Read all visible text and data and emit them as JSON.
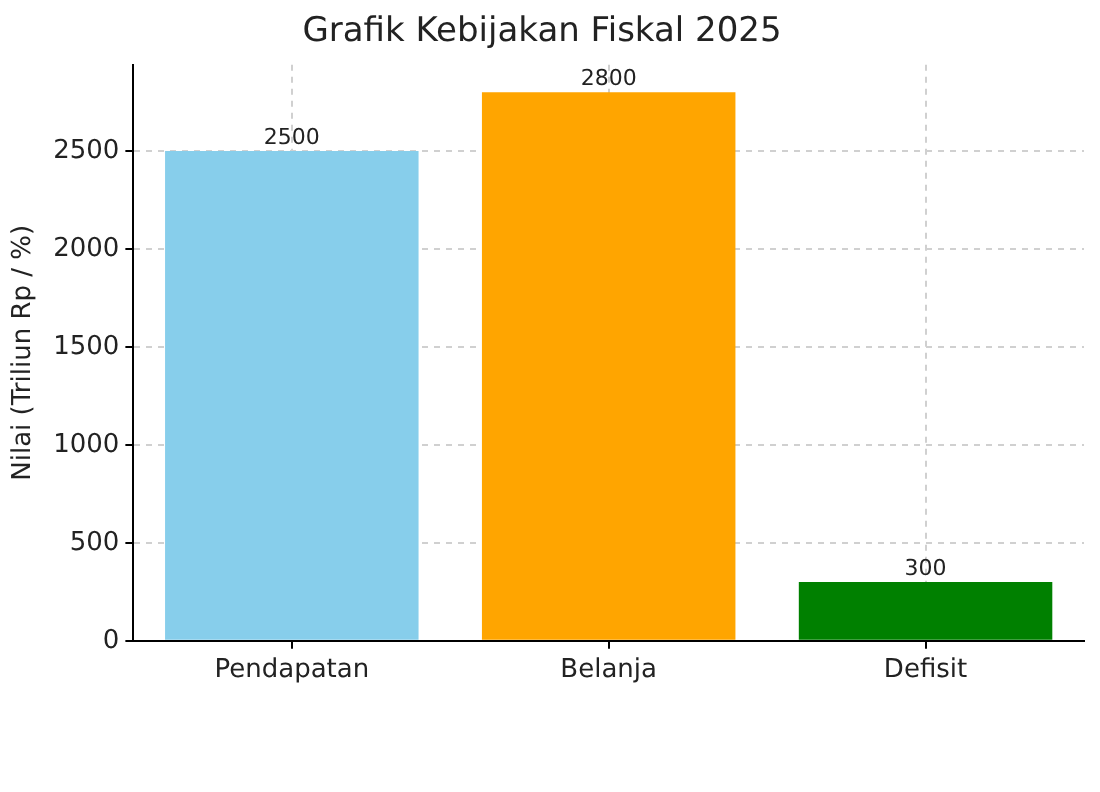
{
  "chart_data": {
    "type": "bar",
    "title": "Grafik Kebijakan Fiskal 2025",
    "ylabel": "Nilai (Triliun Rp / %)",
    "categories": [
      "Pendapatan",
      "Belanja",
      "Defisit"
    ],
    "values": [
      2500,
      2800,
      300
    ],
    "colors": [
      "#87ceeb",
      "#ffa500",
      "#008000"
    ],
    "ylim": [
      0,
      2940
    ],
    "yticks": [
      0,
      500,
      1000,
      1500,
      2000,
      2500
    ],
    "grid": true,
    "data_labels": true,
    "legend": false
  }
}
